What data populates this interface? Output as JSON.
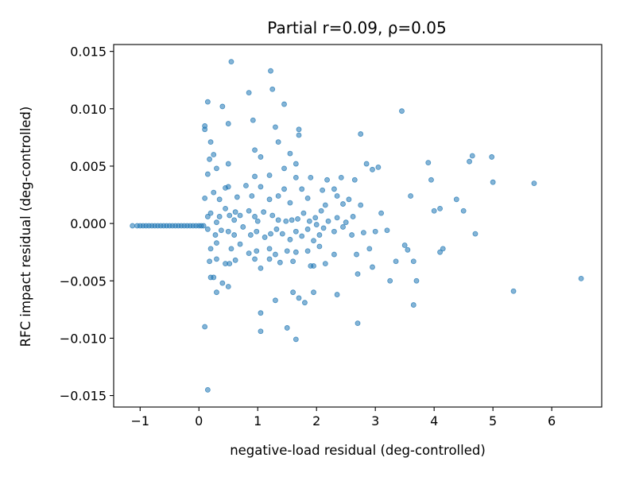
{
  "chart_data": {
    "type": "scatter",
    "title": "Partial r=0.09, ρ=0.05",
    "xlabel": "negative-load residual (deg-controlled)",
    "ylabel": "RFC impact residual (deg-controlled)",
    "xlim": [
      -1.45,
      6.85
    ],
    "ylim": [
      -0.016,
      0.0156
    ],
    "xticks": [
      -1,
      0,
      1,
      2,
      3,
      4,
      5,
      6
    ],
    "xtick_labels": [
      "−1",
      "0",
      "1",
      "2",
      "3",
      "4",
      "5",
      "6"
    ],
    "yticks": [
      -0.015,
      -0.01,
      -0.005,
      0.0,
      0.005,
      0.01,
      0.015
    ],
    "ytick_labels": [
      "−0.015",
      "−0.010",
      "−0.005",
      "0.000",
      "0.005",
      "0.010",
      "0.015"
    ],
    "color": "#1f77b4",
    "grid": false,
    "series": [
      {
        "points": [
          [
            -1.13,
            -0.0002
          ],
          [
            -1.05,
            -0.0002
          ],
          [
            -1.0,
            -0.0002
          ],
          [
            -0.95,
            -0.0002
          ],
          [
            -0.9,
            -0.0002
          ],
          [
            -0.85,
            -0.0002
          ],
          [
            -0.8,
            -0.0002
          ],
          [
            -0.75,
            -0.0002
          ],
          [
            -0.7,
            -0.0002
          ],
          [
            -0.65,
            -0.0002
          ],
          [
            -0.6,
            -0.0002
          ],
          [
            -0.55,
            -0.0002
          ],
          [
            -0.5,
            -0.0002
          ],
          [
            -0.45,
            -0.0002
          ],
          [
            -0.4,
            -0.0002
          ],
          [
            -0.35,
            -0.0002
          ],
          [
            -0.3,
            -0.0002
          ],
          [
            -0.25,
            -0.0002
          ],
          [
            -0.2,
            -0.0002
          ],
          [
            -0.15,
            -0.0002
          ],
          [
            -0.1,
            -0.0002
          ],
          [
            -0.05,
            -0.0002
          ],
          [
            0.0,
            -0.0002
          ],
          [
            0.04,
            -0.0002
          ],
          [
            0.08,
            -0.0002
          ],
          [
            0.55,
            0.0141
          ],
          [
            1.22,
            0.0133
          ],
          [
            1.25,
            0.0117
          ],
          [
            0.85,
            0.0114
          ],
          [
            0.15,
            0.0106
          ],
          [
            0.4,
            0.0102
          ],
          [
            1.45,
            0.0104
          ],
          [
            3.45,
            0.0098
          ],
          [
            0.1,
            0.0085
          ],
          [
            0.1,
            0.0082
          ],
          [
            0.5,
            0.0087
          ],
          [
            0.92,
            0.009
          ],
          [
            1.3,
            0.0084
          ],
          [
            1.7,
            0.0082
          ],
          [
            1.7,
            0.0077
          ],
          [
            2.75,
            0.0078
          ],
          [
            1.35,
            0.0071
          ],
          [
            0.2,
            0.0071
          ],
          [
            0.25,
            0.006
          ],
          [
            0.95,
            0.0064
          ],
          [
            1.05,
            0.0058
          ],
          [
            1.55,
            0.0061
          ],
          [
            4.65,
            0.0059
          ],
          [
            4.6,
            0.0054
          ],
          [
            4.98,
            0.0058
          ],
          [
            3.9,
            0.0053
          ],
          [
            2.85,
            0.0052
          ],
          [
            2.95,
            0.0047
          ],
          [
            3.05,
            0.0049
          ],
          [
            1.65,
            0.0052
          ],
          [
            0.18,
            0.0056
          ],
          [
            0.15,
            0.0043
          ],
          [
            0.3,
            0.0048
          ],
          [
            0.5,
            0.0052
          ],
          [
            0.95,
            0.0041
          ],
          [
            1.2,
            0.0042
          ],
          [
            1.45,
            0.0048
          ],
          [
            1.65,
            0.004
          ],
          [
            1.9,
            0.004
          ],
          [
            2.18,
            0.0038
          ],
          [
            2.42,
            0.004
          ],
          [
            2.65,
            0.0038
          ],
          [
            3.95,
            0.0038
          ],
          [
            5.0,
            0.0036
          ],
          [
            5.7,
            0.0035
          ],
          [
            0.45,
            0.0031
          ],
          [
            0.5,
            0.0032
          ],
          [
            0.8,
            0.0033
          ],
          [
            1.05,
            0.0032
          ],
          [
            1.45,
            0.003
          ],
          [
            1.75,
            0.003
          ],
          [
            2.1,
            0.0029
          ],
          [
            2.3,
            0.003
          ],
          [
            2.35,
            0.0024
          ],
          [
            2.55,
            0.0021
          ],
          [
            3.6,
            0.0024
          ],
          [
            0.1,
            0.0022
          ],
          [
            0.25,
            0.0027
          ],
          [
            0.35,
            0.0021
          ],
          [
            0.65,
            0.0023
          ],
          [
            0.9,
            0.0024
          ],
          [
            1.2,
            0.0021
          ],
          [
            1.35,
            0.0024
          ],
          [
            1.55,
            0.0018
          ],
          [
            1.85,
            0.0022
          ],
          [
            2.15,
            0.0016
          ],
          [
            2.45,
            0.0017
          ],
          [
            2.75,
            0.0016
          ],
          [
            3.1,
            0.0009
          ],
          [
            4.38,
            0.0021
          ],
          [
            4.1,
            0.0013
          ],
          [
            4.5,
            0.0011
          ],
          [
            4.0,
            0.0011
          ],
          [
            0.15,
            0.0006
          ],
          [
            0.2,
            0.0009
          ],
          [
            0.35,
            0.0006
          ],
          [
            0.45,
            0.0013
          ],
          [
            0.52,
            0.0007
          ],
          [
            0.62,
            0.001
          ],
          [
            0.7,
            0.0007
          ],
          [
            0.85,
            0.0011
          ],
          [
            0.95,
            0.0006
          ],
          [
            1.1,
            0.001
          ],
          [
            1.25,
            0.0007
          ],
          [
            1.35,
            0.0003
          ],
          [
            1.48,
            0.0002
          ],
          [
            1.58,
            0.0003
          ],
          [
            1.68,
            0.0004
          ],
          [
            1.78,
            0.0009
          ],
          [
            1.88,
            0.0002
          ],
          [
            1.98,
            0.0005
          ],
          [
            2.08,
            0.0011
          ],
          [
            2.2,
            0.0002
          ],
          [
            2.35,
            0.0005
          ],
          [
            2.5,
            0.0001
          ],
          [
            2.12,
            -0.0004
          ],
          [
            2.3,
            -0.0007
          ],
          [
            2.45,
            -0.0003
          ],
          [
            2.6,
            -0.001
          ],
          [
            2.8,
            -0.0008
          ],
          [
            3.0,
            -0.0007
          ],
          [
            3.2,
            -0.0006
          ],
          [
            3.5,
            -0.0019
          ],
          [
            4.7,
            -0.0009
          ],
          [
            0.15,
            -0.0005
          ],
          [
            0.28,
            -0.001
          ],
          [
            0.38,
            -0.0006
          ],
          [
            0.5,
            -0.0007
          ],
          [
            0.6,
            -0.001
          ],
          [
            0.75,
            -0.0003
          ],
          [
            0.88,
            -0.001
          ],
          [
            0.98,
            -0.0007
          ],
          [
            1.12,
            -0.0012
          ],
          [
            1.22,
            -0.0009
          ],
          [
            1.32,
            -0.0005
          ],
          [
            1.42,
            -0.0009
          ],
          [
            1.55,
            -0.0014
          ],
          [
            1.65,
            -0.0007
          ],
          [
            1.75,
            -0.0011
          ],
          [
            1.85,
            -0.0005
          ],
          [
            1.95,
            -0.0015
          ],
          [
            2.05,
            -0.001
          ],
          [
            0.2,
            -0.0022
          ],
          [
            0.3,
            -0.0017
          ],
          [
            0.55,
            -0.0022
          ],
          [
            0.7,
            -0.0018
          ],
          [
            0.85,
            -0.0026
          ],
          [
            0.98,
            -0.0024
          ],
          [
            1.2,
            -0.0022
          ],
          [
            1.3,
            -0.0027
          ],
          [
            1.5,
            -0.0024
          ],
          [
            1.65,
            -0.0025
          ],
          [
            1.85,
            -0.0024
          ],
          [
            2.05,
            -0.002
          ],
          [
            2.3,
            -0.0027
          ],
          [
            2.68,
            -0.0027
          ],
          [
            2.9,
            -0.0022
          ],
          [
            3.55,
            -0.0023
          ],
          [
            4.1,
            -0.0025
          ],
          [
            4.15,
            -0.0022
          ],
          [
            0.18,
            -0.0033
          ],
          [
            0.3,
            -0.0031
          ],
          [
            0.45,
            -0.0035
          ],
          [
            0.52,
            -0.0035
          ],
          [
            0.62,
            -0.0032
          ],
          [
            0.95,
            -0.0031
          ],
          [
            1.2,
            -0.0031
          ],
          [
            1.38,
            -0.0034
          ],
          [
            1.6,
            -0.0033
          ],
          [
            1.9,
            -0.0037
          ],
          [
            1.95,
            -0.0037
          ],
          [
            2.15,
            -0.0035
          ],
          [
            2.7,
            -0.0044
          ],
          [
            2.95,
            -0.0038
          ],
          [
            3.35,
            -0.0033
          ],
          [
            3.65,
            -0.0033
          ],
          [
            0.2,
            -0.0047
          ],
          [
            0.25,
            -0.0047
          ],
          [
            0.4,
            -0.0052
          ],
          [
            0.5,
            -0.0055
          ],
          [
            0.3,
            -0.006
          ],
          [
            1.05,
            -0.0039
          ],
          [
            1.6,
            -0.006
          ],
          [
            1.7,
            -0.0065
          ],
          [
            1.95,
            -0.006
          ],
          [
            2.35,
            -0.0062
          ],
          [
            3.25,
            -0.005
          ],
          [
            3.7,
            -0.005
          ],
          [
            3.65,
            -0.0071
          ],
          [
            5.35,
            -0.0059
          ],
          [
            6.5,
            -0.0048
          ],
          [
            1.3,
            -0.0067
          ],
          [
            1.8,
            -0.0069
          ],
          [
            1.05,
            -0.0078
          ],
          [
            0.1,
            -0.009
          ],
          [
            1.05,
            -0.0094
          ],
          [
            1.5,
            -0.0091
          ],
          [
            1.65,
            -0.0101
          ],
          [
            2.7,
            -0.0087
          ],
          [
            0.15,
            -0.0145
          ],
          [
            0.3,
            0.0001
          ],
          [
            0.6,
            0.0003
          ],
          [
            1.0,
            0.0002
          ],
          [
            2.0,
            -0.0001
          ],
          [
            2.62,
            0.0006
          ]
        ]
      }
    ]
  }
}
